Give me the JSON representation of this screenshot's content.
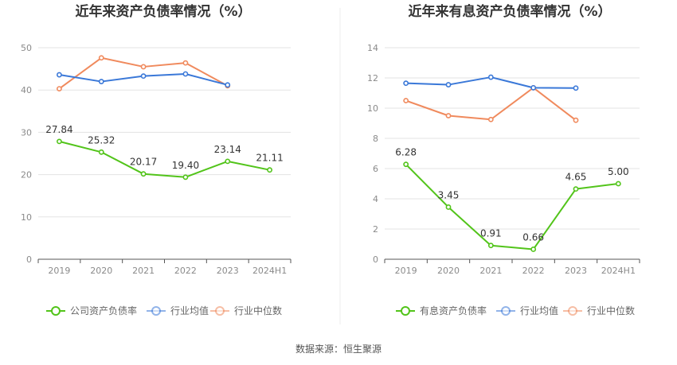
{
  "source_label": "数据来源：恒生聚源",
  "chart_data": [
    {
      "type": "line",
      "title": "近年来资产负债率情况（%）",
      "categories": [
        "2019",
        "2020",
        "2021",
        "2022",
        "2023",
        "2024H1"
      ],
      "ylim": [
        0,
        50
      ],
      "yticks": [
        0,
        10,
        20,
        30,
        40,
        50
      ],
      "grid": true,
      "legend_position": "bottom",
      "series": [
        {
          "name": "公司资产负债率",
          "color": "#52c41a",
          "values": [
            27.84,
            25.32,
            20.17,
            19.4,
            23.14,
            21.11
          ],
          "labels": [
            "27.84",
            "25.32",
            "20.17",
            "19.40",
            "23.14",
            "21.11"
          ]
        },
        {
          "name": "行业均值",
          "color": "#3a78d8",
          "values": [
            43.6,
            42.0,
            43.3,
            43.8,
            41.2,
            null
          ]
        },
        {
          "name": "行业中位数",
          "color": "#f08a5d",
          "values": [
            40.3,
            47.6,
            45.5,
            46.4,
            41.0,
            null
          ]
        }
      ]
    },
    {
      "type": "line",
      "title": "近年来有息资产负债率情况（%）",
      "categories": [
        "2019",
        "2020",
        "2021",
        "2022",
        "2023",
        "2024H1"
      ],
      "ylim": [
        0,
        14
      ],
      "yticks": [
        0,
        2,
        4,
        6,
        8,
        10,
        12,
        14
      ],
      "grid": true,
      "legend_position": "bottom",
      "series": [
        {
          "name": "有息资产负债率",
          "color": "#52c41a",
          "values": [
            6.28,
            3.45,
            0.91,
            0.66,
            4.65,
            5.0
          ],
          "labels": [
            "6.28",
            "3.45",
            "0.91",
            "0.66",
            "4.65",
            "5.00"
          ]
        },
        {
          "name": "行业均值",
          "color": "#3a78d8",
          "values": [
            11.65,
            11.55,
            12.05,
            11.35,
            11.33,
            null
          ]
        },
        {
          "name": "行业中位数",
          "color": "#f08a5d",
          "values": [
            10.5,
            9.5,
            9.25,
            11.35,
            9.2,
            null
          ]
        }
      ]
    }
  ]
}
